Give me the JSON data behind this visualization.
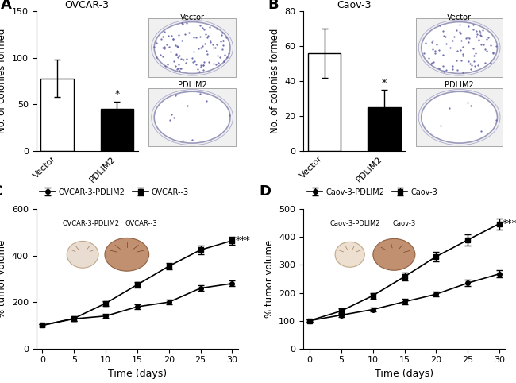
{
  "panel_A": {
    "title": "OVCAR-3",
    "categories": [
      "Vector",
      "PDLIM2"
    ],
    "values": [
      78,
      45
    ],
    "errors": [
      20,
      8
    ],
    "bar_colors": [
      "white",
      "black"
    ],
    "bar_edgecolors": [
      "black",
      "black"
    ],
    "ylabel": "No. of colonies formed",
    "ylim": [
      0,
      150
    ],
    "yticks": [
      0,
      50,
      100,
      150
    ],
    "significance": "*",
    "sig_bar_index": 1
  },
  "panel_B": {
    "title": "Caov-3",
    "categories": [
      "Vector",
      "PDLIM2"
    ],
    "values": [
      56,
      25
    ],
    "errors": [
      14,
      10
    ],
    "bar_colors": [
      "white",
      "black"
    ],
    "bar_edgecolors": [
      "black",
      "black"
    ],
    "ylabel": "No. of colonies formed",
    "ylim": [
      0,
      80
    ],
    "yticks": [
      0,
      20,
      40,
      60,
      80
    ],
    "significance": "*",
    "sig_bar_index": 1
  },
  "panel_C": {
    "legend_labels": [
      "OVCAR-3-PDLIM2",
      "OVCAR--3"
    ],
    "inset_labels": [
      "OVCAR-3-PDLIM2",
      "OVCAR--3"
    ],
    "xlabel": "Time (days)",
    "ylabel": "% tumor volume",
    "ylim": [
      0,
      600
    ],
    "yticks": [
      0,
      200,
      400,
      600
    ],
    "xlim": [
      -1,
      31
    ],
    "xticks": [
      0,
      5,
      10,
      15,
      20,
      25,
      30
    ],
    "significance": "***",
    "line1_x": [
      0,
      5,
      10,
      15,
      20,
      25,
      30
    ],
    "line1_y": [
      100,
      128,
      140,
      180,
      200,
      260,
      280
    ],
    "line1_err": [
      5,
      8,
      8,
      10,
      10,
      12,
      12
    ],
    "line2_x": [
      0,
      5,
      10,
      15,
      20,
      25,
      30
    ],
    "line2_y": [
      100,
      130,
      195,
      275,
      355,
      425,
      465
    ],
    "line2_err": [
      5,
      10,
      10,
      12,
      15,
      18,
      18
    ],
    "inset_bg_color": "#5b9bd5"
  },
  "panel_D": {
    "legend_labels": [
      "Caov-3-PDLIM2",
      "Caov-3"
    ],
    "inset_labels": [
      "Caov-3-PDLIM2",
      "Caov-3"
    ],
    "xlabel": "Time (days)",
    "ylabel": "% tumor volume",
    "ylim": [
      0,
      500
    ],
    "yticks": [
      0,
      100,
      200,
      300,
      400,
      500
    ],
    "xlim": [
      -1,
      31
    ],
    "xticks": [
      0,
      5,
      10,
      15,
      20,
      25,
      30
    ],
    "significance": "***",
    "line1_x": [
      0,
      5,
      10,
      15,
      20,
      25,
      30
    ],
    "line1_y": [
      100,
      120,
      140,
      168,
      195,
      235,
      268
    ],
    "line1_err": [
      5,
      7,
      8,
      10,
      8,
      12,
      12
    ],
    "line2_x": [
      0,
      5,
      10,
      15,
      20,
      25,
      30
    ],
    "line2_y": [
      100,
      135,
      190,
      258,
      330,
      390,
      448
    ],
    "line2_err": [
      5,
      10,
      10,
      15,
      18,
      20,
      20
    ],
    "inset_bg_color": "#5b9bd5"
  },
  "label_fontsize": 9,
  "title_fontsize": 9,
  "tick_fontsize": 8,
  "panel_label_fontsize": 13
}
